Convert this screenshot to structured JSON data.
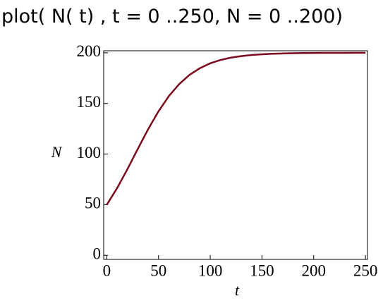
{
  "chart_data": {
    "type": "line",
    "title": "plot( N( t) , t = 0 ..250, N = 0 ..200)",
    "x_label": "t",
    "y_label": "N",
    "x": [
      0,
      10,
      20,
      30,
      40,
      50,
      60,
      70,
      80,
      90,
      100,
      110,
      120,
      130,
      140,
      150,
      160,
      170,
      180,
      190,
      200,
      210,
      220,
      230,
      240,
      250
    ],
    "series": [
      {
        "color": "#7a0a1c",
        "values": [
          50,
          66.4,
          85.2,
          105.1,
          124.6,
          142.2,
          157.2,
          169.1,
          178.2,
          184.8,
          189.6,
          192.9,
          195.2,
          196.7,
          197.8,
          198.5,
          199.0,
          199.3,
          199.6,
          199.7,
          199.8,
          199.9,
          199.9,
          199.9,
          200.0,
          200.0
        ]
      }
    ],
    "xlim": [
      -3,
      252
    ],
    "ylim": [
      -4,
      202
    ],
    "xticks": [
      0,
      50,
      100,
      150,
      200,
      250
    ],
    "yticks": [
      0,
      50,
      100,
      150,
      200
    ]
  }
}
